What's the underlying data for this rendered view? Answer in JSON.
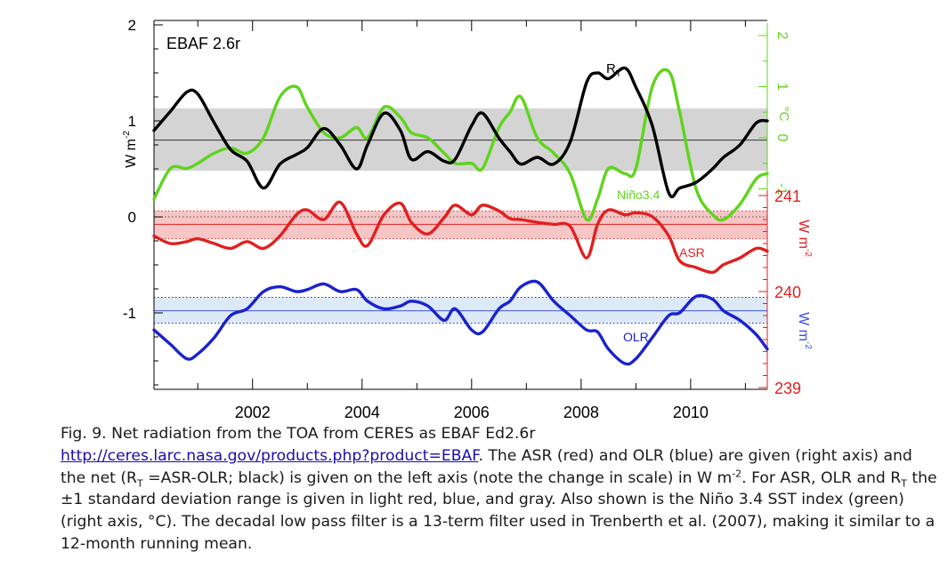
{
  "chart_data": {
    "type": "line",
    "title": "EBAF 2.6r",
    "x": [
      2000.2,
      2000.5,
      2000.8,
      2001.0,
      2001.3,
      2001.6,
      2001.9,
      2002.2,
      2002.5,
      2002.8,
      2003.0,
      2003.3,
      2003.6,
      2003.9,
      2004.1,
      2004.4,
      2004.7,
      2004.9,
      2005.2,
      2005.5,
      2005.7,
      2006.0,
      2006.2,
      2006.5,
      2006.7,
      2006.9,
      2007.2,
      2007.5,
      2007.8,
      2008.1,
      2008.3,
      2008.5,
      2008.8,
      2009.0,
      2009.3,
      2009.6,
      2009.8,
      2010.1,
      2010.4,
      2010.6,
      2010.9,
      2011.2,
      2011.4
    ],
    "xticks": [
      "2002",
      "2004",
      "2006",
      "2008",
      "2010"
    ],
    "xtick_values": [
      2002,
      2004,
      2006,
      2008,
      2010
    ],
    "left_axis": {
      "label": "W m",
      "sup": "-2",
      "ticks": [
        "2",
        "1",
        "0",
        "-1"
      ],
      "tick_values": [
        2,
        1,
        0,
        -1
      ],
      "range": [
        -1.8,
        2.0
      ]
    },
    "right_axis_temp": {
      "label": "°C",
      "ticks": [
        "2",
        "1",
        "0",
        "-1"
      ],
      "tick_values": [
        2,
        1,
        0,
        -1
      ],
      "color": "#5fd41c"
    },
    "right_axis_flux": {
      "label": "W m",
      "sup": "-2",
      "ticks": [
        "241",
        "240",
        "239"
      ],
      "tick_values": [
        241,
        240,
        239
      ],
      "label_colors": [
        "#e02020",
        "#3a4fe0"
      ]
    },
    "series": [
      {
        "name": "R",
        "subscript": "T",
        "axis": "left",
        "color": "#000000",
        "values": [
          0.9,
          1.1,
          1.3,
          1.28,
          0.98,
          0.7,
          0.58,
          0.3,
          0.55,
          0.65,
          0.72,
          0.92,
          0.75,
          0.5,
          0.75,
          1.08,
          0.9,
          0.6,
          0.68,
          0.58,
          0.6,
          0.95,
          1.08,
          0.82,
          0.68,
          0.55,
          0.62,
          0.55,
          0.78,
          1.4,
          1.5,
          1.44,
          1.55,
          1.35,
          0.95,
          0.25,
          0.3,
          0.36,
          0.5,
          0.62,
          0.75,
          0.98,
          1.0
        ],
        "mean": 0.8,
        "band": [
          0.48,
          1.13
        ]
      },
      {
        "name": "Niño3.4",
        "axis": "temp",
        "color": "#5fd41c",
        "values": [
          -1.2,
          -0.6,
          -0.6,
          -0.5,
          -0.3,
          -0.2,
          -0.3,
          0.0,
          0.8,
          1.0,
          0.6,
          0.1,
          0.0,
          0.2,
          0.0,
          0.6,
          0.4,
          0.1,
          0.0,
          -0.3,
          -0.5,
          -0.5,
          -0.6,
          0.2,
          0.5,
          0.8,
          0.0,
          -0.3,
          -0.7,
          -1.6,
          -1.2,
          -0.6,
          -0.7,
          -0.6,
          1.0,
          1.3,
          0.5,
          -1.0,
          -1.5,
          -1.6,
          -1.3,
          -0.8,
          -0.7
        ]
      },
      {
        "name": "ASR",
        "axis": "flux",
        "color": "#e02020",
        "values": [
          240.58,
          240.5,
          240.52,
          240.55,
          240.5,
          240.45,
          240.52,
          240.45,
          240.58,
          240.8,
          240.85,
          240.75,
          240.93,
          240.6,
          240.48,
          240.8,
          240.92,
          240.72,
          240.6,
          240.77,
          240.9,
          240.8,
          240.9,
          240.84,
          240.76,
          240.75,
          240.72,
          240.7,
          240.68,
          240.35,
          240.7,
          240.85,
          240.8,
          240.82,
          240.78,
          240.58,
          240.32,
          240.25,
          240.2,
          240.28,
          240.35,
          240.45,
          240.42
        ],
        "mean": 240.7,
        "band": [
          240.55,
          240.84
        ]
      },
      {
        "name": "OLR",
        "axis": "flux",
        "color": "#1a22cc",
        "values": [
          239.6,
          239.45,
          239.3,
          239.35,
          239.52,
          239.75,
          239.82,
          240.0,
          240.05,
          240.0,
          240.02,
          240.08,
          240.0,
          240.02,
          239.9,
          239.82,
          239.85,
          239.9,
          239.85,
          239.7,
          239.82,
          239.6,
          239.58,
          239.82,
          239.9,
          240.05,
          240.1,
          239.9,
          239.75,
          239.6,
          239.58,
          239.4,
          239.25,
          239.3,
          239.52,
          239.75,
          239.78,
          239.95,
          239.92,
          239.8,
          239.7,
          239.55,
          239.4
        ],
        "mean": 239.8,
        "band": [
          239.67,
          239.94
        ]
      }
    ],
    "annotations": [
      {
        "text": "R",
        "sub": "T",
        "series": "R"
      },
      {
        "text": "Niño3.4",
        "series": "Niño3.4"
      },
      {
        "text": "ASR",
        "series": "ASR"
      },
      {
        "text": "OLR",
        "series": "OLR"
      }
    ],
    "grid": false,
    "legend": "none"
  },
  "caption": {
    "line1": "Fig. 9. Net radiation from the TOA from CERES as EBAF Ed2.6r",
    "link": "http://ceres.larc.nasa.gov/products.php?product=EBAF",
    "part2": ". The ASR (red) and OLR (blue) are given (right axis) and the net (R",
    "sub1": "T",
    "part3": " =ASR-OLR; black) is given on the left axis (note the change in scale) in W m",
    "sup1": "-2",
    "part4": ". For ASR, OLR and R",
    "sub2": "T",
    "part5": " the ±1 standard deviation range is given in light red, blue, and gray. Also shown is the Niño 3.4 SST index (green) (right axis, °C). The decadal low pass filter is a 13-term filter used in Trenberth et al. (2007), making it similar to a 12-month running mean."
  }
}
